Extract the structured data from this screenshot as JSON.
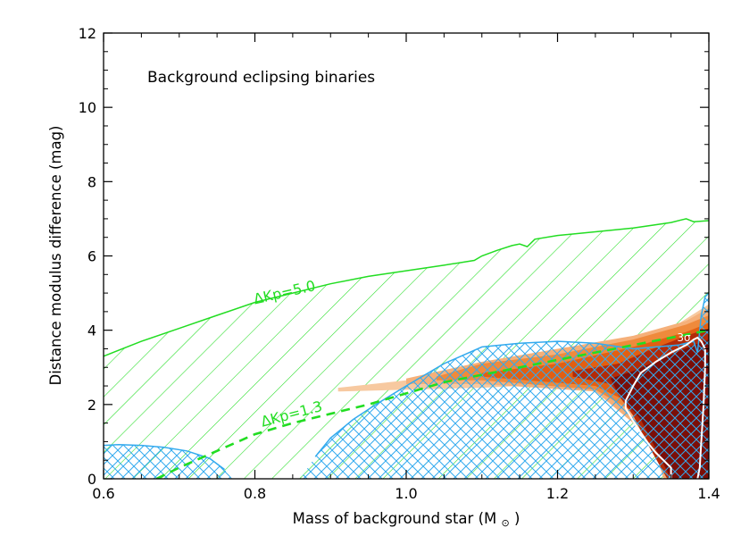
{
  "chart_data": {
    "type": "area",
    "title": "",
    "annotation": "Background eclipsing binaries",
    "xlabel": "Mass of background star (M",
    "xlabel_symbol": "⊙",
    "xlabel_close": ")",
    "ylabel": "Distance modulus difference (mag)",
    "xlim": [
      0.6,
      1.4
    ],
    "ylim": [
      0,
      12
    ],
    "x_ticks": [
      {
        "value": 0.6,
        "label": "0.6"
      },
      {
        "value": 0.8,
        "label": "0.8"
      },
      {
        "value": 1.0,
        "label": "1.0"
      },
      {
        "value": 1.2,
        "label": "1.2"
      },
      {
        "value": 1.4,
        "label": "1.4"
      }
    ],
    "y_ticks": [
      {
        "value": 0,
        "label": "0"
      },
      {
        "value": 2,
        "label": "2"
      },
      {
        "value": 4,
        "label": "4"
      },
      {
        "value": 6,
        "label": "6"
      },
      {
        "value": 8,
        "label": "8"
      },
      {
        "value": 10,
        "label": "10"
      },
      {
        "value": 12,
        "label": "12"
      }
    ],
    "grid": false,
    "colors": {
      "green": "#22dd22",
      "blue": "#33aaee",
      "white": "#ffffff",
      "axis": "#000000",
      "density": [
        "#f7c9a0",
        "#f5b07a",
        "#ef8a3c",
        "#e25f12",
        "#b22a08",
        "#7a0e08"
      ]
    },
    "series": [
      {
        "label": "ΔKp=5.0",
        "label_at": {
          "x": 0.8,
          "y": 4.7,
          "angle_deg": -13
        },
        "style": "solid",
        "boundary_upper": [
          [
            0.6,
            3.3
          ],
          [
            0.65,
            3.7
          ],
          [
            0.7,
            4.05
          ],
          [
            0.75,
            4.4
          ],
          [
            0.8,
            4.75
          ],
          [
            0.85,
            5.0
          ],
          [
            0.9,
            5.25
          ],
          [
            0.95,
            5.45
          ],
          [
            1.0,
            5.6
          ],
          [
            1.05,
            5.75
          ],
          [
            1.09,
            5.88
          ],
          [
            1.1,
            6.0
          ],
          [
            1.12,
            6.15
          ],
          [
            1.14,
            6.28
          ],
          [
            1.15,
            6.32
          ],
          [
            1.16,
            6.25
          ],
          [
            1.17,
            6.45
          ],
          [
            1.2,
            6.55
          ],
          [
            1.25,
            6.65
          ],
          [
            1.3,
            6.75
          ],
          [
            1.35,
            6.9
          ],
          [
            1.37,
            7.0
          ],
          [
            1.38,
            6.92
          ],
          [
            1.4,
            6.95
          ]
        ]
      },
      {
        "label": "ΔKp=1.3",
        "label_at": {
          "x": 0.81,
          "y": 1.4,
          "angle_deg": -15
        },
        "style": "dashed",
        "curve": [
          [
            0.67,
            0.0
          ],
          [
            0.7,
            0.3
          ],
          [
            0.75,
            0.75
          ],
          [
            0.8,
            1.2
          ],
          [
            0.85,
            1.5
          ],
          [
            0.9,
            1.75
          ],
          [
            0.95,
            2.0
          ],
          [
            1.0,
            2.3
          ],
          [
            1.05,
            2.6
          ],
          [
            1.1,
            2.8
          ],
          [
            1.15,
            3.0
          ],
          [
            1.2,
            3.2
          ],
          [
            1.25,
            3.4
          ],
          [
            1.3,
            3.6
          ],
          [
            1.35,
            3.8
          ],
          [
            1.4,
            4.0
          ]
        ]
      }
    ],
    "blue_regions": [
      {
        "boundary": [
          [
            0.6,
            0.9
          ],
          [
            0.62,
            0.92
          ],
          [
            0.65,
            0.9
          ],
          [
            0.68,
            0.85
          ],
          [
            0.71,
            0.75
          ],
          [
            0.74,
            0.55
          ],
          [
            0.76,
            0.25
          ],
          [
            0.77,
            0.0
          ],
          [
            0.6,
            0.0
          ]
        ]
      },
      {
        "boundary": [
          [
            0.86,
            0.0
          ],
          [
            0.88,
            0.6
          ],
          [
            0.9,
            1.1
          ],
          [
            0.93,
            1.6
          ],
          [
            0.96,
            2.0
          ],
          [
            1.0,
            2.5
          ],
          [
            1.05,
            3.1
          ],
          [
            1.1,
            3.55
          ],
          [
            1.15,
            3.65
          ],
          [
            1.2,
            3.7
          ],
          [
            1.25,
            3.65
          ],
          [
            1.3,
            3.5
          ],
          [
            1.33,
            3.55
          ],
          [
            1.36,
            3.6
          ],
          [
            1.38,
            3.7
          ],
          [
            1.385,
            3.4
          ],
          [
            1.39,
            4.4
          ],
          [
            1.395,
            4.9
          ],
          [
            1.4,
            5.0
          ],
          [
            1.4,
            0.0
          ]
        ]
      }
    ],
    "density_bands": [
      {
        "level": 1,
        "upper": [
          [
            0.91,
            2.45
          ],
          [
            1.0,
            2.65
          ],
          [
            1.1,
            3.05
          ],
          [
            1.2,
            3.45
          ],
          [
            1.3,
            3.8
          ],
          [
            1.35,
            4.05
          ],
          [
            1.4,
            4.7
          ]
        ],
        "lower": [
          [
            1.4,
            2.8
          ],
          [
            1.3,
            2.7
          ],
          [
            1.2,
            2.55
          ],
          [
            1.1,
            2.45
          ],
          [
            1.0,
            2.4
          ],
          [
            0.91,
            2.35
          ]
        ]
      },
      {
        "level": 2,
        "upper": [
          [
            1.0,
            2.7
          ],
          [
            1.1,
            3.15
          ],
          [
            1.2,
            3.5
          ],
          [
            1.3,
            3.85
          ],
          [
            1.37,
            4.25
          ],
          [
            1.4,
            4.6
          ]
        ],
        "lower": [
          [
            1.4,
            0.0
          ],
          [
            1.34,
            0.0
          ],
          [
            1.33,
            0.7
          ],
          [
            1.3,
            1.5
          ],
          [
            1.25,
            2.35
          ],
          [
            1.1,
            2.55
          ],
          [
            1.0,
            2.55
          ]
        ]
      },
      {
        "level": 3,
        "upper": [
          [
            1.04,
            2.75
          ],
          [
            1.1,
            3.1
          ],
          [
            1.2,
            3.35
          ],
          [
            1.3,
            3.75
          ],
          [
            1.37,
            4.15
          ],
          [
            1.4,
            4.4
          ]
        ],
        "lower": [
          [
            1.4,
            0.0
          ],
          [
            1.35,
            0.0
          ],
          [
            1.33,
            0.9
          ],
          [
            1.3,
            1.8
          ],
          [
            1.25,
            2.4
          ],
          [
            1.1,
            2.65
          ],
          [
            1.04,
            2.65
          ]
        ]
      },
      {
        "level": 4,
        "upper": [
          [
            1.1,
            2.85
          ],
          [
            1.2,
            3.1
          ],
          [
            1.3,
            3.55
          ],
          [
            1.37,
            3.95
          ],
          [
            1.4,
            4.2
          ]
        ],
        "lower": [
          [
            1.4,
            0.0
          ],
          [
            1.35,
            0.0
          ],
          [
            1.33,
            1.0
          ],
          [
            1.3,
            2.0
          ],
          [
            1.25,
            2.5
          ],
          [
            1.1,
            2.75
          ]
        ]
      },
      {
        "level": 5,
        "upper": [
          [
            1.22,
            2.9
          ],
          [
            1.28,
            3.1
          ],
          [
            1.32,
            3.45
          ],
          [
            1.37,
            3.85
          ],
          [
            1.4,
            4.05
          ]
        ],
        "lower": [
          [
            1.4,
            0.0
          ],
          [
            1.345,
            0.0
          ],
          [
            1.32,
            0.9
          ],
          [
            1.3,
            1.7
          ],
          [
            1.27,
            2.55
          ],
          [
            1.22,
            2.75
          ]
        ]
      },
      {
        "level": 6,
        "upper": [
          [
            1.27,
            2.7
          ],
          [
            1.3,
            2.9
          ],
          [
            1.34,
            3.25
          ],
          [
            1.38,
            3.6
          ],
          [
            1.4,
            3.75
          ]
        ],
        "lower": [
          [
            1.4,
            0.0
          ],
          [
            1.35,
            0.0
          ],
          [
            1.33,
            0.8
          ],
          [
            1.31,
            1.6
          ],
          [
            1.28,
            2.3
          ]
        ]
      }
    ],
    "contour_3sigma": {
      "label": "3σ",
      "label_at": {
        "x": 1.367,
        "y": 3.7
      },
      "points": [
        [
          1.35,
          0.0
        ],
        [
          1.35,
          0.3
        ],
        [
          1.33,
          0.7
        ],
        [
          1.32,
          0.95
        ],
        [
          1.31,
          1.25
        ],
        [
          1.3,
          1.55
        ],
        [
          1.29,
          1.9
        ],
        [
          1.29,
          2.1
        ],
        [
          1.3,
          2.5
        ],
        [
          1.31,
          2.85
        ],
        [
          1.33,
          3.15
        ],
        [
          1.35,
          3.4
        ],
        [
          1.37,
          3.6
        ],
        [
          1.38,
          3.75
        ],
        [
          1.385,
          3.8
        ],
        [
          1.39,
          3.7
        ],
        [
          1.395,
          3.5
        ],
        [
          1.395,
          3.0
        ],
        [
          1.393,
          2.0
        ],
        [
          1.39,
          1.0
        ],
        [
          1.388,
          0.3
        ],
        [
          1.385,
          0.0
        ]
      ]
    }
  }
}
